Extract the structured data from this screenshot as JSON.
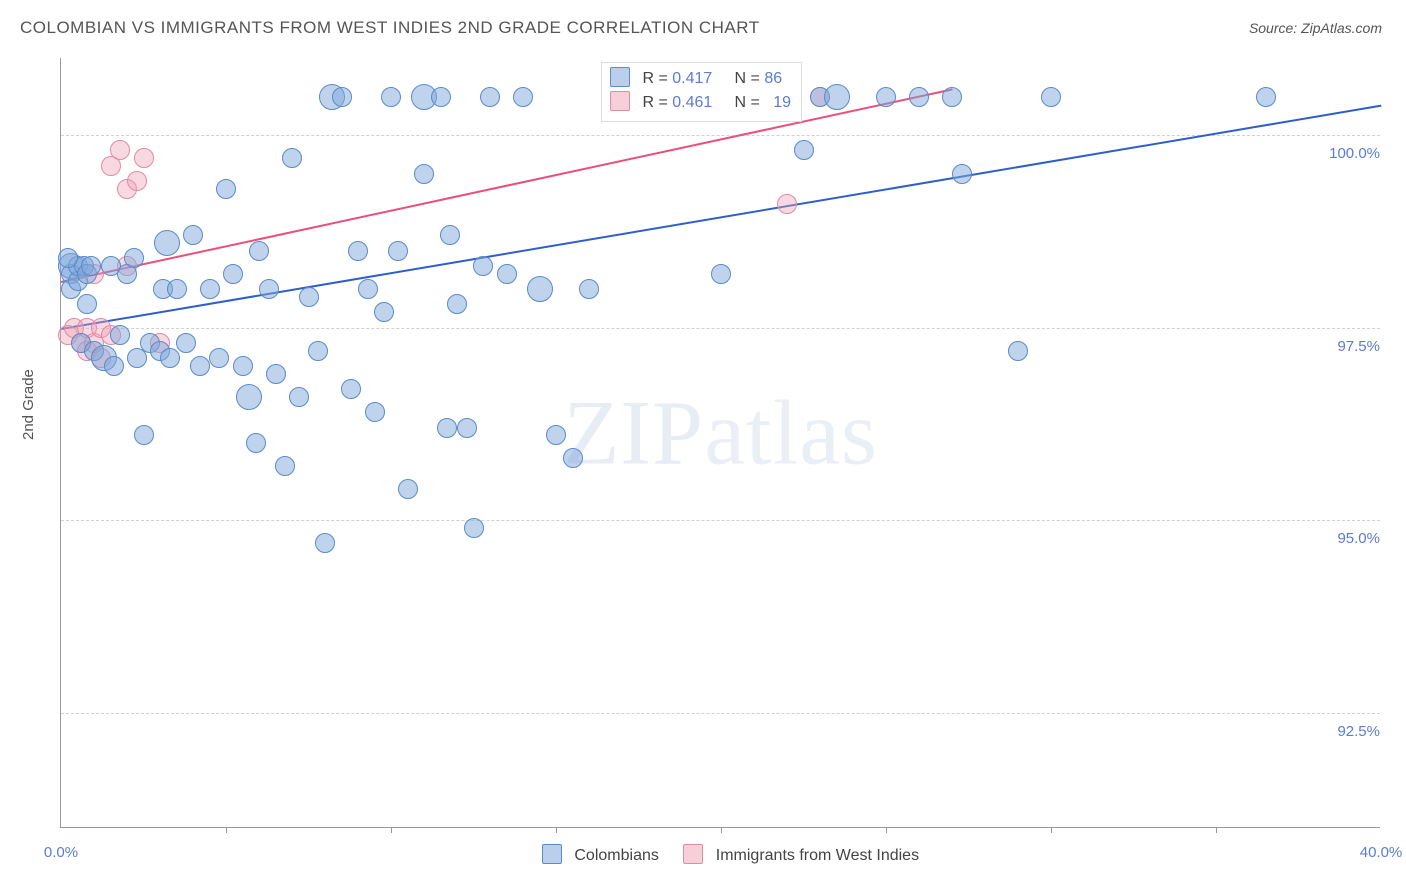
{
  "title": "COLOMBIAN VS IMMIGRANTS FROM WEST INDIES 2ND GRADE CORRELATION CHART",
  "source_label": "Source: ",
  "source_value": "ZipAtlas.com",
  "y_axis_label": "2nd Grade",
  "watermark": "ZIPatlas",
  "chart": {
    "type": "scatter",
    "xlim": [
      0.0,
      40.0
    ],
    "ylim": [
      91.0,
      101.0
    ],
    "x_ticks": [
      0.0,
      40.0
    ],
    "x_tick_labels": [
      "0.0%",
      "40.0%"
    ],
    "x_minor_ticks": [
      5,
      10,
      15,
      20,
      25,
      30,
      35
    ],
    "y_ticks": [
      92.5,
      95.0,
      97.5,
      100.0
    ],
    "y_tick_labels": [
      "92.5%",
      "95.0%",
      "97.5%",
      "100.0%"
    ],
    "background_color": "#ffffff",
    "grid_color": "#d0d0d0",
    "marker_radius": 10,
    "marker_radius_lg": 13,
    "series": [
      {
        "name_key": "colombians",
        "label": "Colombians",
        "color_fill": "rgba(128,168,220,0.5)",
        "color_stroke": "#5b8bc9",
        "trend_color": "#2e5fc9",
        "R": "0.417",
        "N": "86",
        "trend": {
          "x1": 0.0,
          "y1": 97.5,
          "x2": 40.0,
          "y2": 100.4
        },
        "points": [
          [
            0.3,
            98.3
          ],
          [
            0.3,
            98.2
          ],
          [
            0.3,
            98.0
          ],
          [
            0.5,
            98.1
          ],
          [
            0.5,
            98.3
          ],
          [
            0.6,
            97.3
          ],
          [
            0.7,
            98.3
          ],
          [
            0.8,
            98.2
          ],
          [
            0.8,
            97.8
          ],
          [
            0.9,
            98.3
          ],
          [
            1.0,
            97.2
          ],
          [
            1.3,
            97.1
          ],
          [
            1.5,
            98.3
          ],
          [
            1.6,
            97.0
          ],
          [
            1.8,
            97.4
          ],
          [
            2.0,
            98.2
          ],
          [
            2.2,
            98.4
          ],
          [
            2.3,
            97.1
          ],
          [
            2.5,
            96.1
          ],
          [
            2.7,
            97.3
          ],
          [
            3.0,
            97.2
          ],
          [
            3.1,
            98.0
          ],
          [
            3.2,
            98.6
          ],
          [
            3.3,
            97.1
          ],
          [
            3.5,
            98.0
          ],
          [
            3.8,
            97.3
          ],
          [
            4.0,
            98.7
          ],
          [
            4.2,
            97.0
          ],
          [
            4.5,
            98.0
          ],
          [
            4.8,
            97.1
          ],
          [
            5.0,
            99.3
          ],
          [
            5.2,
            98.2
          ],
          [
            5.5,
            97.0
          ],
          [
            5.7,
            96.6
          ],
          [
            5.9,
            96.0
          ],
          [
            6.0,
            98.5
          ],
          [
            6.3,
            98.0
          ],
          [
            6.5,
            96.9
          ],
          [
            6.8,
            95.7
          ],
          [
            7.0,
            99.7
          ],
          [
            7.2,
            96.6
          ],
          [
            7.5,
            97.9
          ],
          [
            7.8,
            97.2
          ],
          [
            8.0,
            94.7
          ],
          [
            8.2,
            100.5
          ],
          [
            8.5,
            100.5
          ],
          [
            8.8,
            96.7
          ],
          [
            9.0,
            98.5
          ],
          [
            9.3,
            98.0
          ],
          [
            9.5,
            96.4
          ],
          [
            9.8,
            97.7
          ],
          [
            10.0,
            100.5
          ],
          [
            10.2,
            98.5
          ],
          [
            10.5,
            95.4
          ],
          [
            11.0,
            99.5
          ],
          [
            11.0,
            100.5
          ],
          [
            11.5,
            100.5
          ],
          [
            11.7,
            96.2
          ],
          [
            11.8,
            98.7
          ],
          [
            12.0,
            97.8
          ],
          [
            12.3,
            96.2
          ],
          [
            12.5,
            94.9
          ],
          [
            12.8,
            98.3
          ],
          [
            13.0,
            100.5
          ],
          [
            13.5,
            98.2
          ],
          [
            14.0,
            100.5
          ],
          [
            14.5,
            98.0
          ],
          [
            15.0,
            96.1
          ],
          [
            15.5,
            95.8
          ],
          [
            16.0,
            98.0
          ],
          [
            18.0,
            100.5
          ],
          [
            18.5,
            100.5
          ],
          [
            19.5,
            100.5
          ],
          [
            20.0,
            98.2
          ],
          [
            21.0,
            100.5
          ],
          [
            22.5,
            99.8
          ],
          [
            23.0,
            100.5
          ],
          [
            23.5,
            100.5
          ],
          [
            25.0,
            100.5
          ],
          [
            26.0,
            100.5
          ],
          [
            27.0,
            100.5
          ],
          [
            27.3,
            99.5
          ],
          [
            29.0,
            97.2
          ],
          [
            30.0,
            100.5
          ],
          [
            36.5,
            100.5
          ],
          [
            0.2,
            98.4
          ]
        ]
      },
      {
        "name_key": "west-indies",
        "label": "Immigrants from West Indies",
        "color_fill": "rgba(240,160,180,0.4)",
        "color_stroke": "#e08ba4",
        "trend_color": "#e94f7a",
        "R": "0.461",
        "N": "19",
        "trend": {
          "x1": 0.0,
          "y1": 98.1,
          "x2": 27.0,
          "y2": 100.6
        },
        "points": [
          [
            0.2,
            97.4
          ],
          [
            0.4,
            97.5
          ],
          [
            0.6,
            97.3
          ],
          [
            0.8,
            97.5
          ],
          [
            0.8,
            97.2
          ],
          [
            1.0,
            98.2
          ],
          [
            1.0,
            97.3
          ],
          [
            1.2,
            97.1
          ],
          [
            1.2,
            97.5
          ],
          [
            1.5,
            99.6
          ],
          [
            1.5,
            97.4
          ],
          [
            1.8,
            99.8
          ],
          [
            2.0,
            99.3
          ],
          [
            2.0,
            98.3
          ],
          [
            2.3,
            99.4
          ],
          [
            2.5,
            99.7
          ],
          [
            3.0,
            97.3
          ],
          [
            22.0,
            99.1
          ],
          [
            23.0,
            100.5
          ]
        ]
      }
    ]
  },
  "legend_stats_labels": {
    "R": "R =",
    "N": "N ="
  },
  "bottom_legend": {
    "colombians": "Colombians",
    "west_indies": "Immigrants from West Indies"
  }
}
